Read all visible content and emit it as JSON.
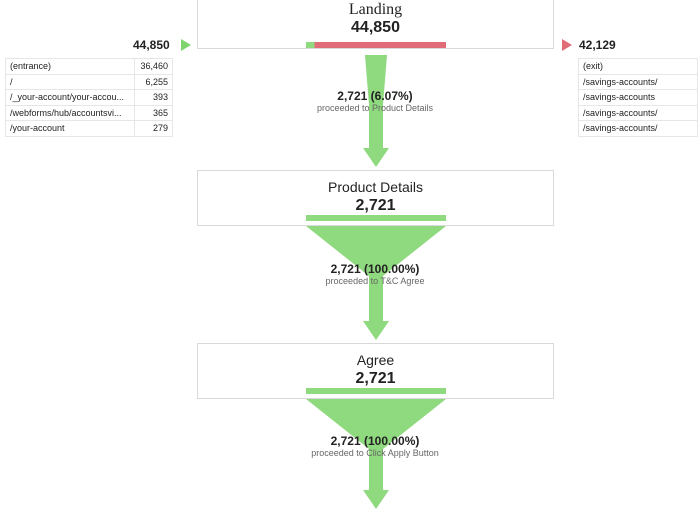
{
  "entrances": {
    "total": "44,850",
    "rows": [
      {
        "page": "(entrance)",
        "count": "36,460"
      },
      {
        "page": "/",
        "count": "6,255"
      },
      {
        "page": "/_your-account/your-accou...",
        "count": "393"
      },
      {
        "page": "/webforms/hub/accountsvi...",
        "count": "365"
      },
      {
        "page": "/your-account",
        "count": "279"
      }
    ]
  },
  "exits": {
    "total": "42,129",
    "rows": [
      {
        "page": "(exit)"
      },
      {
        "page": "/savings-accounts/"
      },
      {
        "page": "/savings-accounts"
      },
      {
        "page": "/savings-accounts/"
      },
      {
        "page": "/savings-accounts/"
      }
    ]
  },
  "steps": [
    {
      "name": "Landing",
      "count": "44,850",
      "proceed_fraction": 0.0607
    },
    {
      "name": "Product Details",
      "count": "2,721",
      "proceed_fraction": 1.0
    },
    {
      "name": "Agree",
      "count": "2,721",
      "proceed_fraction": 1.0
    }
  ],
  "conversions": [
    {
      "value": "2,721 (6.07%)",
      "label": "proceeded to Product Details"
    },
    {
      "value": "2,721 (100.00%)",
      "label": "proceeded to T&C Agree"
    },
    {
      "value": "2,721 (100.00%)",
      "label": "proceeded to Click Apply Button"
    }
  ],
  "colors": {
    "continue_green": "#8fd97f",
    "exit_red": "#e06c78",
    "entrance_green": "#7fd46d"
  }
}
